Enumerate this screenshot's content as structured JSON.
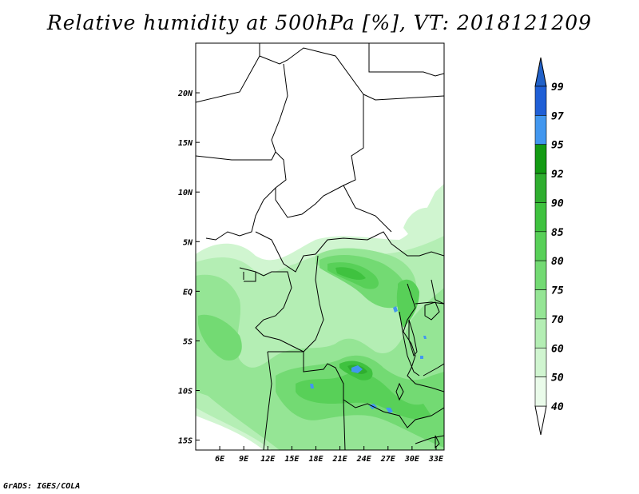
{
  "title": "Relative humidity at 500hPa [%], VT: 2018121209",
  "credit": "GrADS: IGES/COLA",
  "map": {
    "lon_range": [
      3,
      34
    ],
    "lat_range": [
      -16,
      25
    ],
    "x_ticks": [
      {
        "lon": 6,
        "label": "6E"
      },
      {
        "lon": 9,
        "label": "9E"
      },
      {
        "lon": 12,
        "label": "12E"
      },
      {
        "lon": 15,
        "label": "15E"
      },
      {
        "lon": 18,
        "label": "18E"
      },
      {
        "lon": 21,
        "label": "21E"
      },
      {
        "lon": 24,
        "label": "24E"
      },
      {
        "lon": 27,
        "label": "27E"
      },
      {
        "lon": 30,
        "label": "30E"
      },
      {
        "lon": 33,
        "label": "33E"
      }
    ],
    "y_ticks": [
      {
        "lat": 20,
        "label": "20N"
      },
      {
        "lat": 15,
        "label": "15N"
      },
      {
        "lat": 10,
        "label": "10N"
      },
      {
        "lat": 5,
        "label": "5N"
      },
      {
        "lat": 0,
        "label": "EQ"
      },
      {
        "lat": -5,
        "label": "5S"
      },
      {
        "lat": -10,
        "label": "10S"
      },
      {
        "lat": -15,
        "label": "15S"
      }
    ]
  },
  "colorbar": {
    "levels": [
      {
        "label": "99"
      },
      {
        "label": "97"
      },
      {
        "label": "95"
      },
      {
        "label": "92"
      },
      {
        "label": "90"
      },
      {
        "label": "85"
      },
      {
        "label": "80"
      },
      {
        "label": "75"
      },
      {
        "label": "70"
      },
      {
        "label": "60"
      },
      {
        "label": "50"
      },
      {
        "label": "40"
      }
    ],
    "colors": [
      "#1f5fd6",
      "#4297ef",
      "#139b13",
      "#2fae2f",
      "#3fc23f",
      "#58d058",
      "#73da73",
      "#95e595",
      "#b4eeb4",
      "#d0f5d0",
      "#eafbea"
    ],
    "top_arrow_color": "#2161c8"
  }
}
